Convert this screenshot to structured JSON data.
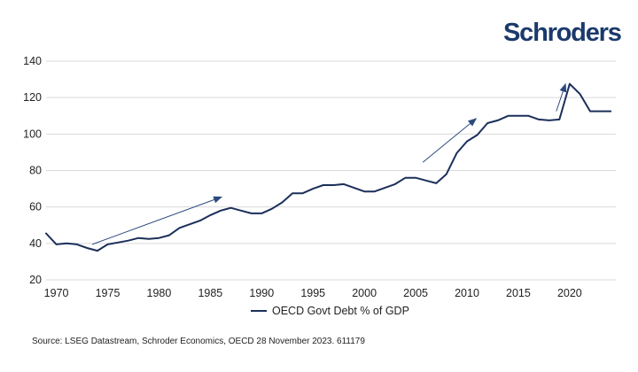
{
  "brand": {
    "logo_text": "Schroders",
    "color": "#1b3a6b"
  },
  "legend": {
    "label": "OECD Govt Debt % of GDP"
  },
  "source": "Source: LSEG Datastream, Schroder Economics, OECD 28 November 2023. 611179",
  "colors": {
    "series": "#1b2f5a",
    "arrow": "#2b4a7e",
    "grid": "#d9d9d9"
  },
  "chart_data": {
    "type": "line",
    "title": "",
    "xlabel": "",
    "ylabel": "",
    "xlim": [
      1969,
      2024.5
    ],
    "ylim": [
      20,
      140
    ],
    "xticks": [
      1970,
      1975,
      1980,
      1985,
      1990,
      1995,
      2000,
      2005,
      2010,
      2015,
      2020
    ],
    "yticks": [
      20,
      40,
      60,
      80,
      100,
      120,
      140
    ],
    "grid": "horizontal",
    "legend_position": "bottom-center",
    "series": [
      {
        "name": "OECD Govt Debt % of GDP",
        "x": [
          1969,
          1970,
          1971,
          1972,
          1973,
          1974,
          1975,
          1976,
          1977,
          1978,
          1979,
          1980,
          1981,
          1982,
          1983,
          1984,
          1985,
          1986,
          1987,
          1988,
          1989,
          1990,
          1991,
          1992,
          1993,
          1994,
          1995,
          1996,
          1997,
          1998,
          1999,
          2000,
          2001,
          2002,
          2003,
          2004,
          2005,
          2006,
          2007,
          2008,
          2009,
          2010,
          2011,
          2012,
          2013,
          2014,
          2015,
          2016,
          2017,
          2018,
          2019,
          2020,
          2021,
          2022,
          2023,
          2024
        ],
        "values": [
          45.5,
          39.5,
          40,
          39.5,
          37.5,
          36,
          39.5,
          40.5,
          41.5,
          43,
          42.5,
          43,
          44.5,
          48.5,
          50.5,
          52.5,
          55.5,
          58,
          59.5,
          58,
          56.5,
          56.5,
          59,
          62.5,
          67.5,
          67.5,
          70,
          72,
          72,
          72.5,
          70.5,
          68.5,
          68.5,
          70.5,
          72.5,
          76,
          76,
          74.5,
          73,
          78,
          89.5,
          96,
          99.5,
          106,
          107.5,
          110,
          110,
          110,
          108,
          107.5,
          108,
          127.5,
          122,
          112.5,
          112.5,
          112.5
        ]
      }
    ],
    "annotations": [
      {
        "type": "arrow",
        "from": [
          1973.5,
          39.5
        ],
        "to": [
          1986.1,
          65.5
        ]
      },
      {
        "type": "arrow",
        "from": [
          2005.7,
          84.5
        ],
        "to": [
          2010.9,
          108.5
        ]
      },
      {
        "type": "arrow",
        "from": [
          2018.7,
          112.5
        ],
        "to": [
          2019.6,
          127.5
        ]
      }
    ]
  }
}
